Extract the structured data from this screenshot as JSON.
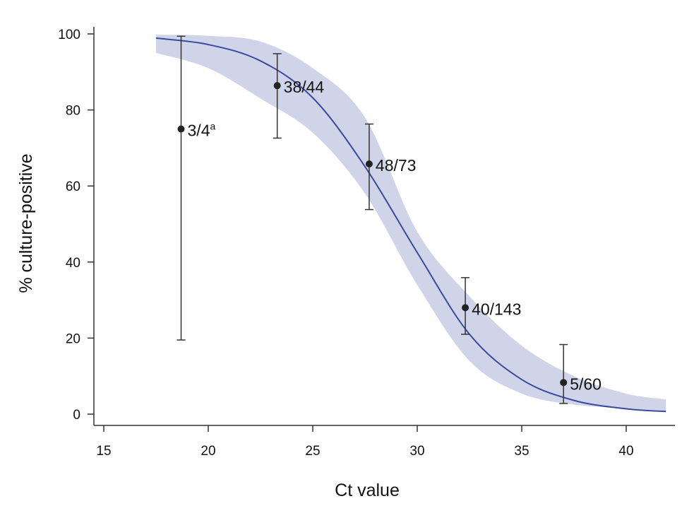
{
  "chart_data": {
    "type": "scatter",
    "title": "",
    "xlabel": "Ct value",
    "ylabel": "% culture-positive",
    "xlim": [
      14.5,
      42.2
    ],
    "ylim": [
      -3,
      102
    ],
    "xticks": [
      15,
      20,
      25,
      30,
      35,
      40
    ],
    "yticks": [
      0,
      20,
      40,
      60,
      80,
      100
    ],
    "grid": false,
    "colors": {
      "band": "#d0d4e8",
      "curve": "#3a4aa0",
      "points": "#222222"
    },
    "points": [
      {
        "x": 18.7,
        "y": 75.0,
        "lower": 19.5,
        "upper": 99.4,
        "label": "3/4",
        "sup": "a"
      },
      {
        "x": 23.3,
        "y": 86.4,
        "lower": 72.6,
        "upper": 94.8,
        "label": "38/44",
        "sup": ""
      },
      {
        "x": 27.7,
        "y": 65.8,
        "lower": 53.8,
        "upper": 76.3,
        "label": "48/73",
        "sup": ""
      },
      {
        "x": 32.3,
        "y": 28.0,
        "lower": 21.0,
        "upper": 35.9,
        "label": "40/143",
        "sup": ""
      },
      {
        "x": 37.0,
        "y": 8.3,
        "lower": 2.8,
        "upper": 18.3,
        "label": "5/60",
        "sup": ""
      }
    ],
    "fit": {
      "x": [
        17.5,
        20,
        22.5,
        25,
        27.5,
        30,
        32.5,
        35,
        37.5,
        40,
        41.9
      ],
      "y": [
        98.9,
        97.2,
        92.9,
        83.2,
        65.1,
        42.5,
        21.0,
        9.1,
        3.6,
        1.4,
        0.7
      ],
      "upper": [
        99.8,
        99.5,
        98.0,
        91.0,
        78.0,
        48.0,
        31.0,
        18.0,
        10.0,
        5.4,
        3.9
      ],
      "lower": [
        95.0,
        91.0,
        83.0,
        74.0,
        58.0,
        34.0,
        14.0,
        5.4,
        2.5,
        1.5,
        0.5
      ]
    }
  }
}
